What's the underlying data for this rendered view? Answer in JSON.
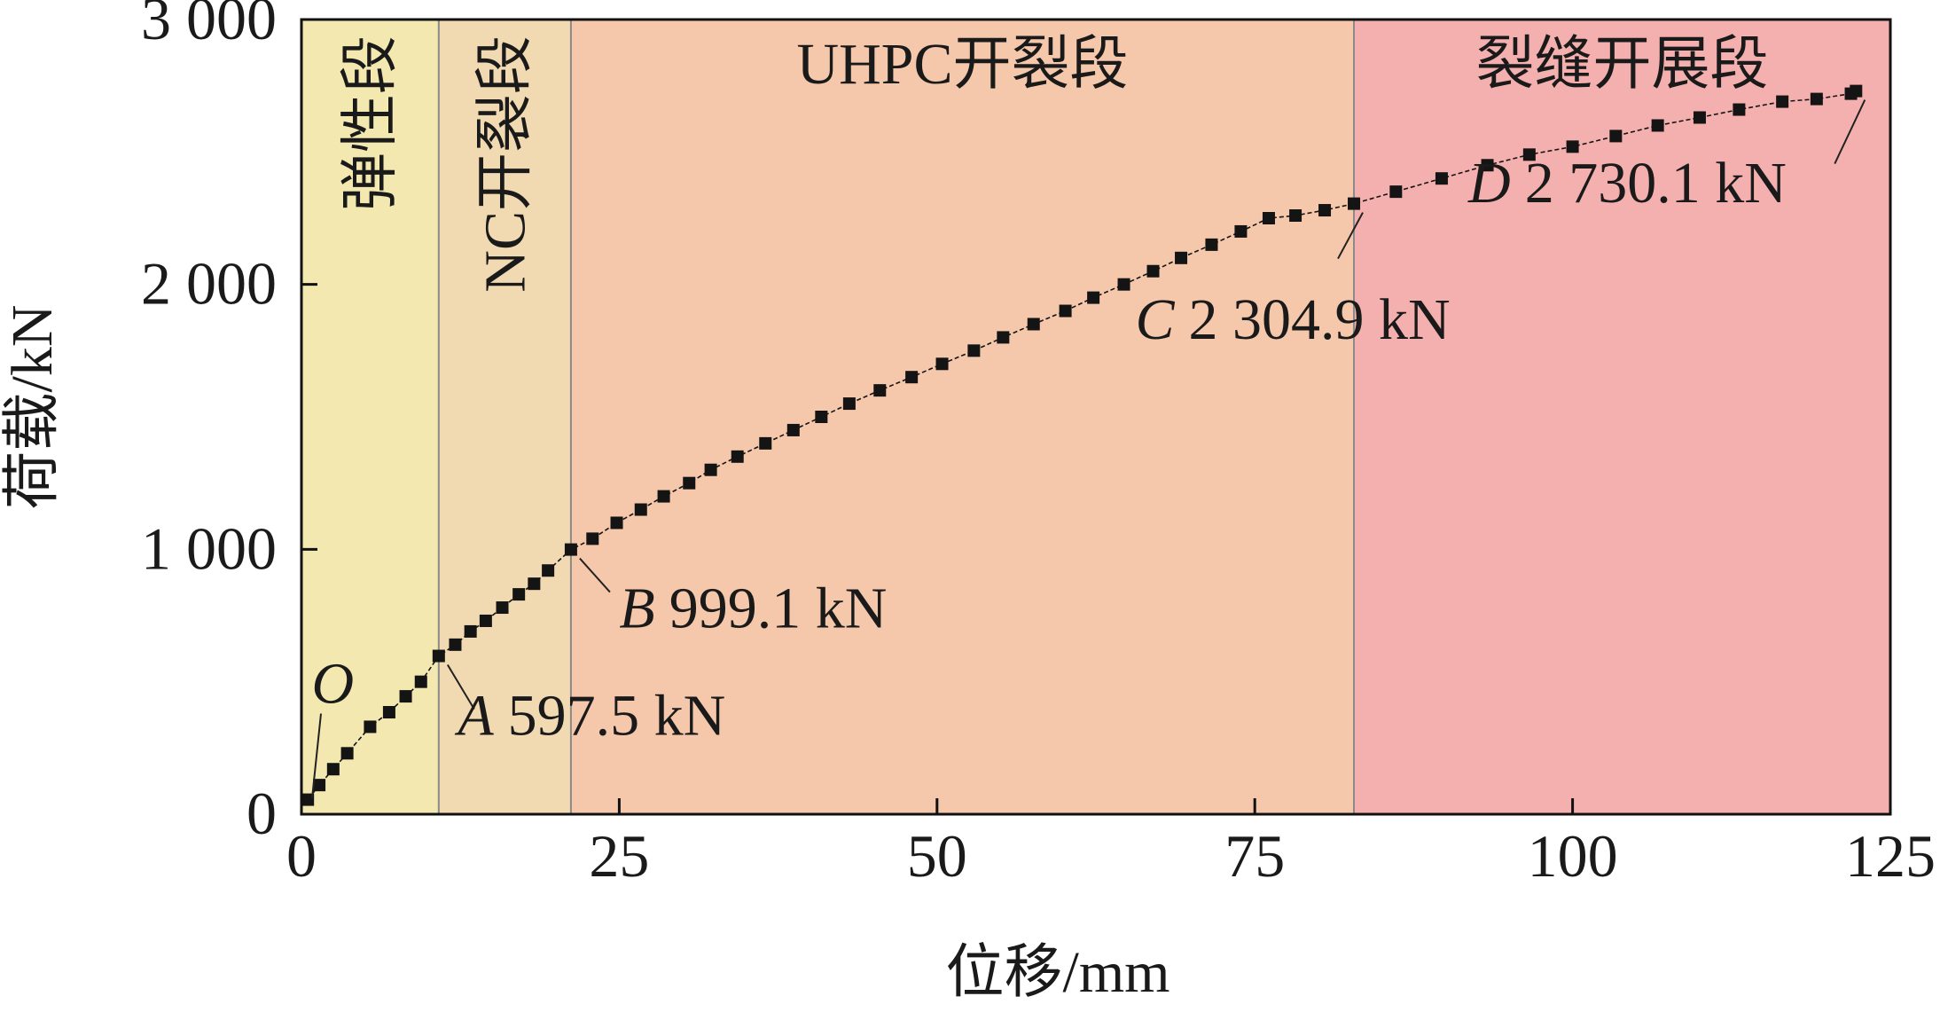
{
  "chart_data": {
    "type": "line",
    "title": "",
    "xlabel": "位移/mm",
    "ylabel": "荷载/kN",
    "xlim": [
      0,
      125
    ],
    "ylim": [
      0,
      3000
    ],
    "x_ticks": [
      {
        "value": 0,
        "label": "0"
      },
      {
        "value": 25,
        "label": "25"
      },
      {
        "value": 50,
        "label": "50"
      },
      {
        "value": 75,
        "label": "75"
      },
      {
        "value": 100,
        "label": "100"
      },
      {
        "value": 125,
        "label": "125"
      }
    ],
    "y_ticks": [
      {
        "value": 0,
        "label": "0"
      },
      {
        "value": 1000,
        "label": "1 000"
      },
      {
        "value": 2000,
        "label": "2 000"
      },
      {
        "value": 3000,
        "label": "3 000"
      }
    ],
    "grid": false,
    "legend": "none",
    "zones": [
      {
        "label": "弹性段",
        "x_start": 0,
        "x_end": 10.8,
        "color": "#f2e8b0",
        "label_orientation": "vertical"
      },
      {
        "label": "NC开裂段",
        "x_start": 10.8,
        "x_end": 21.2,
        "color": "#f1d9b2",
        "label_orientation": "vertical"
      },
      {
        "label": "UHPC开裂段",
        "x_start": 21.2,
        "x_end": 82.8,
        "color": "#f6c8ab",
        "label_orientation": "horizontal"
      },
      {
        "label": "裂缝开展段",
        "x_start": 82.8,
        "x_end": 125,
        "color": "#f4b0ae",
        "label_orientation": "horizontal"
      }
    ],
    "series": [
      {
        "x": [
          0.5,
          1.4,
          2.5,
          3.6,
          5.4,
          6.9,
          8.2,
          9.4,
          10.8,
          12.1,
          13.3,
          14.5,
          15.8,
          17.1,
          18.3,
          19.4,
          21.2,
          22.9,
          24.8,
          26.7,
          28.5,
          30.5,
          32.2,
          34.3,
          36.5,
          38.7,
          40.9,
          43.1,
          45.5,
          48.0,
          50.4,
          52.9,
          55.2,
          57.6,
          60.1,
          62.3,
          64.7,
          67.0,
          69.2,
          71.6,
          73.9,
          76.1,
          78.2,
          80.5,
          82.8,
          86.1,
          89.7,
          93.3,
          96.6,
          100.0,
          103.4,
          106.7,
          110.0,
          113.1,
          116.5,
          119.2,
          121.9,
          122.3
        ],
        "y": [
          55,
          110,
          170,
          230,
          330,
          385,
          445,
          500,
          597.5,
          640,
          690,
          730,
          780,
          830,
          870,
          920,
          999.1,
          1040,
          1100,
          1150,
          1200,
          1250,
          1300,
          1350,
          1400,
          1450,
          1500,
          1550,
          1600,
          1650,
          1700,
          1750,
          1800,
          1850,
          1900,
          1950,
          2000,
          2050,
          2100,
          2150,
          2200,
          2250,
          2260,
          2280,
          2304.9,
          2350,
          2400,
          2450,
          2490,
          2520,
          2560,
          2600,
          2630,
          2660,
          2690,
          2700,
          2720,
          2730.1
        ]
      }
    ],
    "annotations": [
      {
        "letter": "O",
        "value": "",
        "x": 0,
        "y": 0,
        "label_anchor": [
          0.8,
          420
        ]
      },
      {
        "letter": "A",
        "value": "597.5 kN",
        "x": 10.8,
        "y": 597.5,
        "label_anchor": [
          12.3,
          300
        ]
      },
      {
        "letter": "B",
        "value": "999.1 kN",
        "x": 21.2,
        "y": 999.1,
        "label_anchor": [
          25.0,
          705
        ]
      },
      {
        "letter": "C",
        "value": "2 304.9 kN",
        "x": 82.8,
        "y": 2304.9,
        "label_anchor": [
          65.6,
          1795
        ]
      },
      {
        "letter": "D",
        "value": "2 730.1 kN",
        "x": 122.3,
        "y": 2730.1,
        "label_anchor": [
          91.8,
          2310
        ]
      }
    ],
    "colors": {
      "axis": "#111111",
      "series": "#141414",
      "boundary": "#8a8a8a"
    }
  }
}
